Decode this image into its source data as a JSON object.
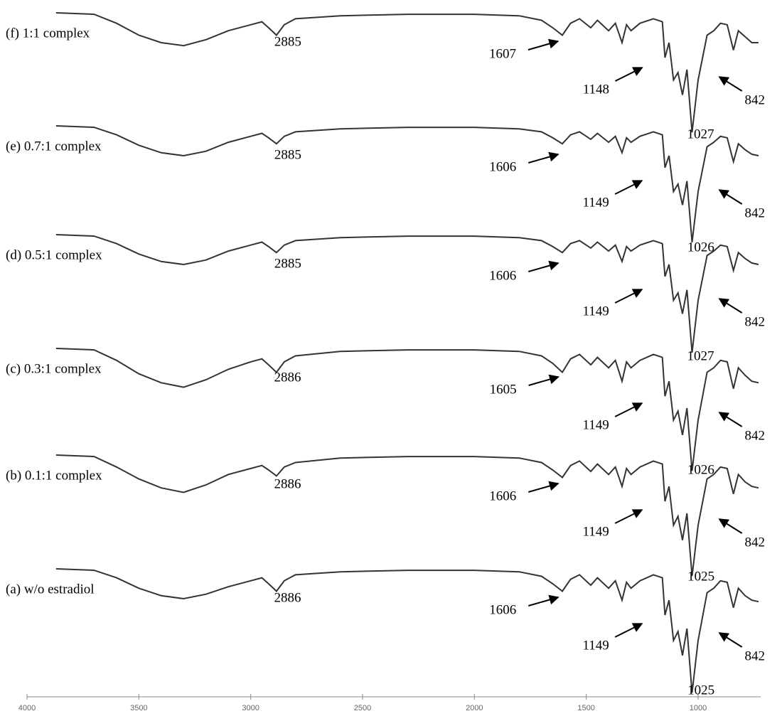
{
  "chart_data": {
    "type": "spectra",
    "color": "#333333",
    "xlim": [
      4000,
      700
    ],
    "ylim": [
      0,
      100
    ],
    "xticks": [
      4000,
      3500,
      3000,
      2500,
      2000,
      1500,
      1000
    ],
    "x": [
      3870,
      3700,
      3600,
      3500,
      3400,
      3300,
      3200,
      3100,
      3000,
      2950,
      2920,
      2885,
      2850,
      2800,
      2600,
      2300,
      2000,
      1800,
      1700,
      1650,
      1607,
      1570,
      1530,
      1480,
      1450,
      1400,
      1370,
      1340,
      1320,
      1300,
      1260,
      1200,
      1160,
      1148,
      1130,
      1110,
      1090,
      1070,
      1050,
      1027,
      1000,
      960,
      930,
      900,
      870,
      842,
      820,
      790,
      760,
      730
    ],
    "series": [
      {
        "name": "(f) 1:1 complex",
        "peaks": [
          2885,
          1607,
          1148,
          1027,
          842
        ],
        "values": [
          100,
          99,
          93,
          85,
          80,
          78,
          82,
          88,
          92,
          94,
          90,
          85,
          92,
          96,
          98,
          99,
          99,
          98,
          95,
          90,
          85,
          93,
          96,
          90,
          95,
          88,
          93,
          80,
          92,
          88,
          93,
          96,
          94,
          70,
          80,
          55,
          60,
          45,
          62,
          20,
          55,
          85,
          88,
          93,
          92,
          75,
          88,
          84,
          80,
          80
        ]
      },
      {
        "name": "(e) 0.7:1 complex",
        "peaks": [
          2885,
          1606,
          1149,
          1026,
          842
        ],
        "values": [
          100,
          99,
          94,
          87,
          82,
          80,
          83,
          89,
          93,
          95,
          92,
          88,
          93,
          96,
          98,
          99,
          99,
          98,
          96,
          92,
          88,
          94,
          96,
          91,
          95,
          89,
          93,
          82,
          92,
          89,
          93,
          96,
          94,
          72,
          80,
          56,
          61,
          47,
          63,
          22,
          56,
          86,
          89,
          93,
          92,
          76,
          88,
          84,
          81,
          80
        ]
      },
      {
        "name": "(d) 0.5:1 complex",
        "peaks": [
          2885,
          1606,
          1149,
          1027,
          842
        ],
        "values": [
          100,
          99,
          94,
          87,
          82,
          80,
          83,
          89,
          93,
          95,
          92,
          88,
          93,
          96,
          98,
          99,
          99,
          98,
          96,
          92,
          88,
          94,
          96,
          91,
          95,
          89,
          93,
          82,
          92,
          89,
          93,
          96,
          94,
          72,
          80,
          56,
          61,
          47,
          63,
          21,
          56,
          86,
          89,
          93,
          92,
          76,
          88,
          84,
          81,
          80
        ]
      },
      {
        "name": "(c) 0.3:1 complex",
        "peaks": [
          2886,
          1605,
          1149,
          1026,
          842
        ],
        "values": [
          100,
          99,
          92,
          83,
          77,
          74,
          79,
          86,
          91,
          93,
          89,
          84,
          91,
          95,
          98,
          99,
          99,
          98,
          95,
          90,
          84,
          93,
          96,
          89,
          94,
          87,
          92,
          78,
          91,
          87,
          92,
          96,
          94,
          68,
          78,
          52,
          58,
          42,
          60,
          18,
          52,
          84,
          87,
          92,
          91,
          73,
          87,
          82,
          78,
          77
        ]
      },
      {
        "name": "(b) 0.1:1 complex",
        "peaks": [
          2886,
          1606,
          1149,
          1025,
          842
        ],
        "values": [
          100,
          99,
          92,
          84,
          78,
          75,
          80,
          87,
          91,
          93,
          90,
          86,
          92,
          95,
          98,
          99,
          99,
          98,
          95,
          90,
          85,
          93,
          96,
          89,
          94,
          87,
          92,
          79,
          91,
          87,
          92,
          96,
          94,
          69,
          79,
          53,
          59,
          43,
          61,
          19,
          53,
          84,
          87,
          92,
          91,
          74,
          87,
          82,
          79,
          78
        ]
      },
      {
        "name": "(a) w/o estradiol",
        "peaks": [
          2886,
          1606,
          1149,
          1025,
          842
        ],
        "values": [
          100,
          99,
          94,
          87,
          82,
          80,
          83,
          88,
          92,
          94,
          90,
          85,
          92,
          96,
          98,
          99,
          99,
          98,
          95,
          90,
          85,
          93,
          96,
          89,
          94,
          87,
          92,
          79,
          91,
          87,
          92,
          96,
          94,
          69,
          79,
          52,
          58,
          42,
          60,
          17,
          52,
          84,
          87,
          92,
          91,
          74,
          87,
          82,
          79,
          78
        ]
      }
    ]
  }
}
